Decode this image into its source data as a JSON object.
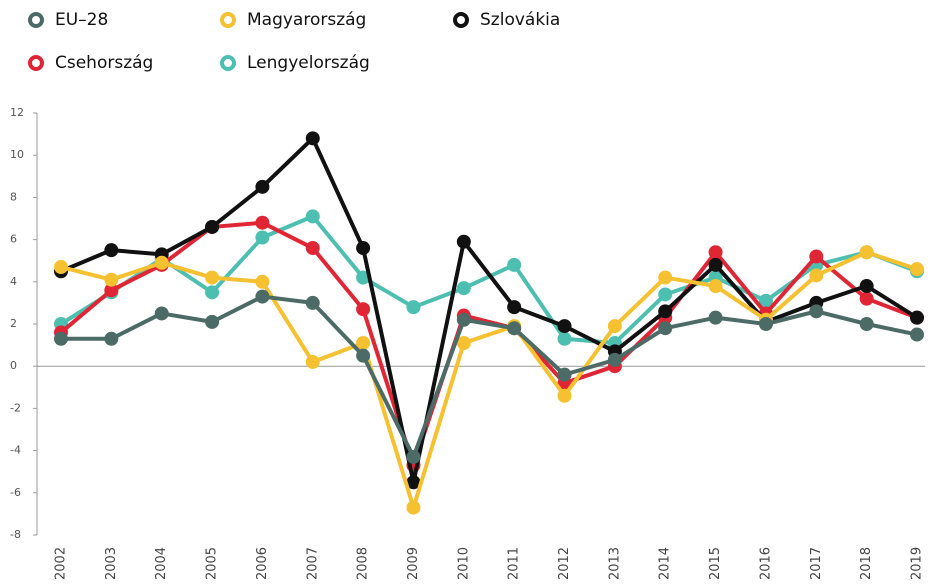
{
  "chart_data": {
    "type": "line",
    "categories": [
      "2002",
      "2003",
      "2004",
      "2005",
      "2006",
      "2007",
      "2008",
      "2009",
      "2010",
      "2011",
      "2012",
      "2013",
      "2014",
      "2015",
      "2016",
      "2017",
      "2018",
      "2019"
    ],
    "series": [
      {
        "name": "EU–28",
        "color": "#4d6b66",
        "values": [
          1.3,
          1.3,
          2.5,
          2.1,
          3.3,
          3.0,
          0.5,
          -4.3,
          2.2,
          1.8,
          -0.4,
          0.3,
          1.8,
          2.3,
          2.0,
          2.6,
          2.0,
          1.5
        ]
      },
      {
        "name": "Magyarország",
        "color": "#f5c131",
        "values": [
          4.7,
          4.1,
          4.9,
          4.2,
          4.0,
          0.2,
          1.1,
          -6.7,
          1.1,
          1.9,
          -1.4,
          1.9,
          4.2,
          3.8,
          2.2,
          4.3,
          5.4,
          4.6
        ]
      },
      {
        "name": "Szlovákia",
        "color": "#111111",
        "values": [
          4.5,
          5.5,
          5.3,
          6.6,
          8.5,
          10.8,
          5.6,
          -5.5,
          5.9,
          2.8,
          1.9,
          0.7,
          2.6,
          4.8,
          2.1,
          3.0,
          3.8,
          2.3
        ]
      },
      {
        "name": "Csehország",
        "color": "#e02535",
        "values": [
          1.6,
          3.6,
          4.8,
          6.6,
          6.8,
          5.6,
          2.7,
          -4.7,
          2.4,
          1.8,
          -0.8,
          0.0,
          2.3,
          5.4,
          2.5,
          5.2,
          3.2,
          2.3
        ]
      },
      {
        "name": "Lengyelország",
        "color": "#4dbfb1",
        "values": [
          2.0,
          3.5,
          5.1,
          3.5,
          6.1,
          7.1,
          4.2,
          2.8,
          3.7,
          4.8,
          1.3,
          1.1,
          3.4,
          4.2,
          3.1,
          4.8,
          5.4,
          4.5
        ]
      }
    ],
    "ylim": [
      -8,
      12
    ],
    "yticks": [
      -8,
      -6,
      -4,
      -2,
      0,
      2,
      4,
      6,
      8,
      10,
      12
    ],
    "legend": "top-left"
  }
}
